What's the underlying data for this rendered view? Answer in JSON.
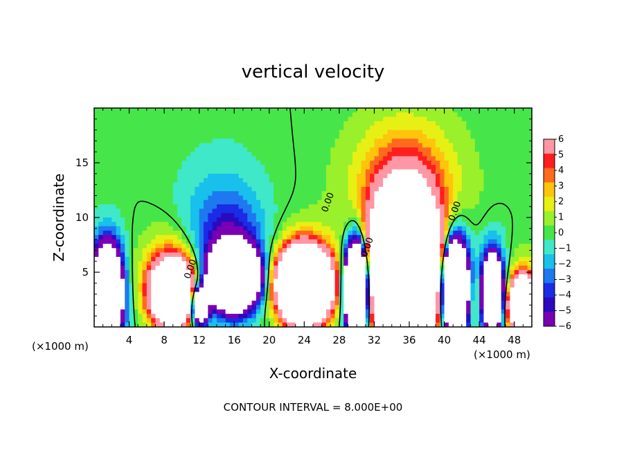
{
  "chart_data": {
    "type": "heatmap",
    "title": "vertical velocity",
    "xlabel": "X-coordinate",
    "ylabel": "Z-coordinate",
    "x_unit_left": "(×1000 m)",
    "x_unit_right": "(×1000 m)",
    "footer": "CONTOUR INTERVAL = 8.000E+00",
    "xlim": [
      0,
      50
    ],
    "ylim": [
      0,
      20
    ],
    "x_ticks": [
      4,
      8,
      12,
      16,
      20,
      24,
      28,
      32,
      36,
      40,
      44,
      48
    ],
    "y_ticks": [
      5,
      10,
      15
    ],
    "colorbar": {
      "min": -6,
      "max": 6,
      "labels": [
        "6",
        "5",
        "4",
        "3",
        "2",
        "1",
        "0",
        "−1",
        "−2",
        "−3",
        "−4",
        "−5",
        "−6"
      ],
      "values": [
        6,
        5,
        4,
        3,
        2,
        1,
        0,
        -1,
        -2,
        -3,
        -4,
        -5,
        -6
      ]
    },
    "contour_labels": [
      {
        "text": "0.00",
        "x": 27,
        "z": 11.3
      },
      {
        "text": "0.00",
        "x": 31.5,
        "z": 7.2
      },
      {
        "text": "0.00",
        "x": 41.5,
        "z": 10.5
      },
      {
        "text": "0.00",
        "x": 11.3,
        "z": 5.2
      }
    ],
    "cells": [
      {
        "x": 1.5,
        "z": 3.0,
        "w": -30,
        "sx": 0.9,
        "sz": 2.3
      },
      {
        "x": 1.5,
        "z": 3.0,
        "w": -12,
        "sx": 1.3,
        "sz": 3.3
      },
      {
        "x": 9.0,
        "z": 3.0,
        "w": 30,
        "sx": 1.5,
        "sz": 1.8
      },
      {
        "x": 9.0,
        "z": 4.5,
        "w": 5,
        "sx": 2.5,
        "sz": 2.8
      },
      {
        "x": 12.0,
        "z": 2.0,
        "w": -20,
        "sx": 0.7,
        "sz": 1.2
      },
      {
        "x": 16.0,
        "z": 4.5,
        "w": -45,
        "sx": 1.6,
        "sz": 1.6
      },
      {
        "x": 15.5,
        "z": 6.0,
        "w": -5,
        "sx": 2.6,
        "sz": 3.3
      },
      {
        "x": 14.5,
        "z": 9.0,
        "w": -2.5,
        "sx": 3.5,
        "sz": 4.5
      },
      {
        "x": 24.0,
        "z": 3.8,
        "w": 40,
        "sx": 1.8,
        "sz": 2.0
      },
      {
        "x": 24.0,
        "z": 4.5,
        "w": 5,
        "sx": 2.4,
        "sz": 2.8
      },
      {
        "x": 30.0,
        "z": 3.5,
        "w": -40,
        "sx": 0.8,
        "sz": 2.4
      },
      {
        "x": 30.0,
        "z": 4.5,
        "w": -5,
        "sx": 1.1,
        "sz": 3.6
      },
      {
        "x": 35.5,
        "z": 5.0,
        "w": 55,
        "sx": 2.2,
        "sz": 3.8
      },
      {
        "x": 35.5,
        "z": 9.0,
        "w": 6,
        "sx": 3.5,
        "sz": 5.0
      },
      {
        "x": 35.5,
        "z": 13.5,
        "w": 2.5,
        "sx": 4.5,
        "sz": 4.0
      },
      {
        "x": 41.2,
        "z": 3.5,
        "w": -40,
        "sx": 0.9,
        "sz": 2.4
      },
      {
        "x": 41.2,
        "z": 5.0,
        "w": -5,
        "sx": 1.3,
        "sz": 3.5
      },
      {
        "x": 45.5,
        "z": 3.0,
        "w": -30,
        "sx": 0.7,
        "sz": 2.0
      },
      {
        "x": 45.5,
        "z": 4.0,
        "w": -4,
        "sx": 1.2,
        "sz": 3.0
      },
      {
        "x": 43.5,
        "z": 2.8,
        "w": 3,
        "sx": 0.7,
        "sz": 1.8
      },
      {
        "x": 49.0,
        "z": 2.0,
        "w": 30,
        "sx": 1.0,
        "sz": 1.5
      },
      {
        "x": 49.0,
        "z": 3.0,
        "w": 3,
        "sx": 1.5,
        "sz": 2.5
      }
    ]
  }
}
